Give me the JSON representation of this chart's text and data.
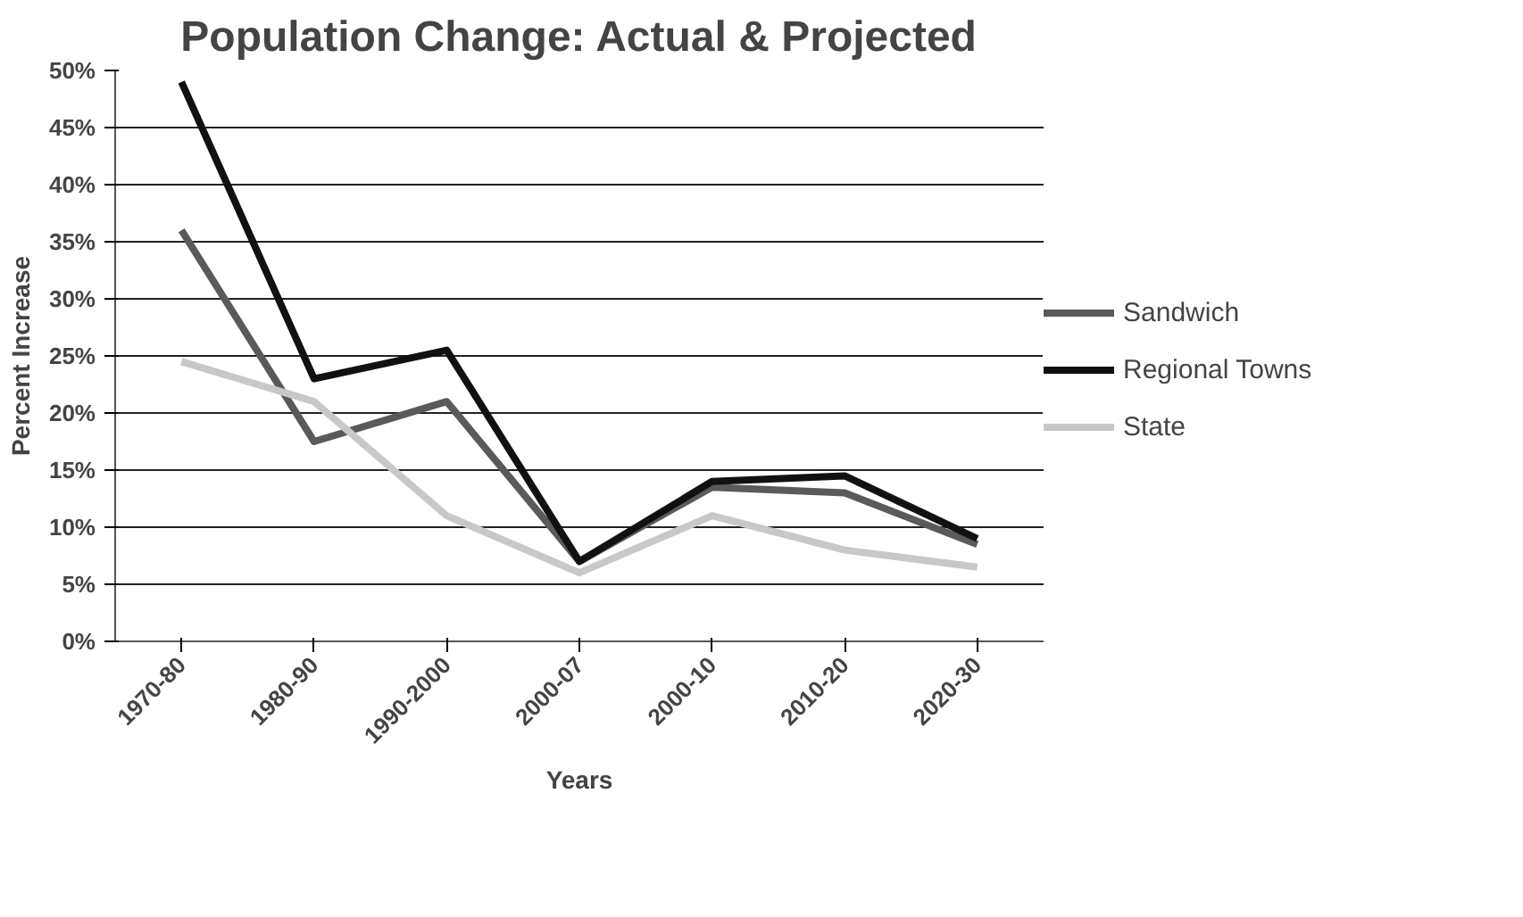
{
  "chart_data": {
    "type": "line",
    "title": "Population Change: Actual & Projected",
    "xlabel": "Years",
    "ylabel": "Percent Increase",
    "categories": [
      "1970-80",
      "1980-90",
      "1990-2000",
      "2000-07",
      "2000-10",
      "2010-20",
      "2020-30"
    ],
    "series": [
      {
        "name": "Sandwich",
        "color": "#5a5a5a",
        "values": [
          36,
          17.5,
          21,
          7,
          13.5,
          13,
          8.5
        ]
      },
      {
        "name": "Regional Towns",
        "color": "#111111",
        "values": [
          49,
          23,
          25.5,
          7,
          14,
          14.5,
          9
        ]
      },
      {
        "name": "State",
        "color": "#c8c8c8",
        "values": [
          24.5,
          21,
          11,
          6,
          11,
          8,
          6.5
        ]
      }
    ],
    "ylim": [
      0,
      50
    ],
    "yticks": [
      {
        "value": 0,
        "label": "0%"
      },
      {
        "value": 5,
        "label": "5%"
      },
      {
        "value": 10,
        "label": "10%"
      },
      {
        "value": 15,
        "label": "15%"
      },
      {
        "value": 20,
        "label": "20%"
      },
      {
        "value": 25,
        "label": "25%"
      },
      {
        "value": 30,
        "label": "30%"
      },
      {
        "value": 35,
        "label": "35%"
      },
      {
        "value": 40,
        "label": "40%"
      },
      {
        "value": 45,
        "label": "45%"
      },
      {
        "value": 50,
        "label": "50%"
      }
    ],
    "grid": "y",
    "legend": "right",
    "marker": "none",
    "line_style": "solid"
  }
}
